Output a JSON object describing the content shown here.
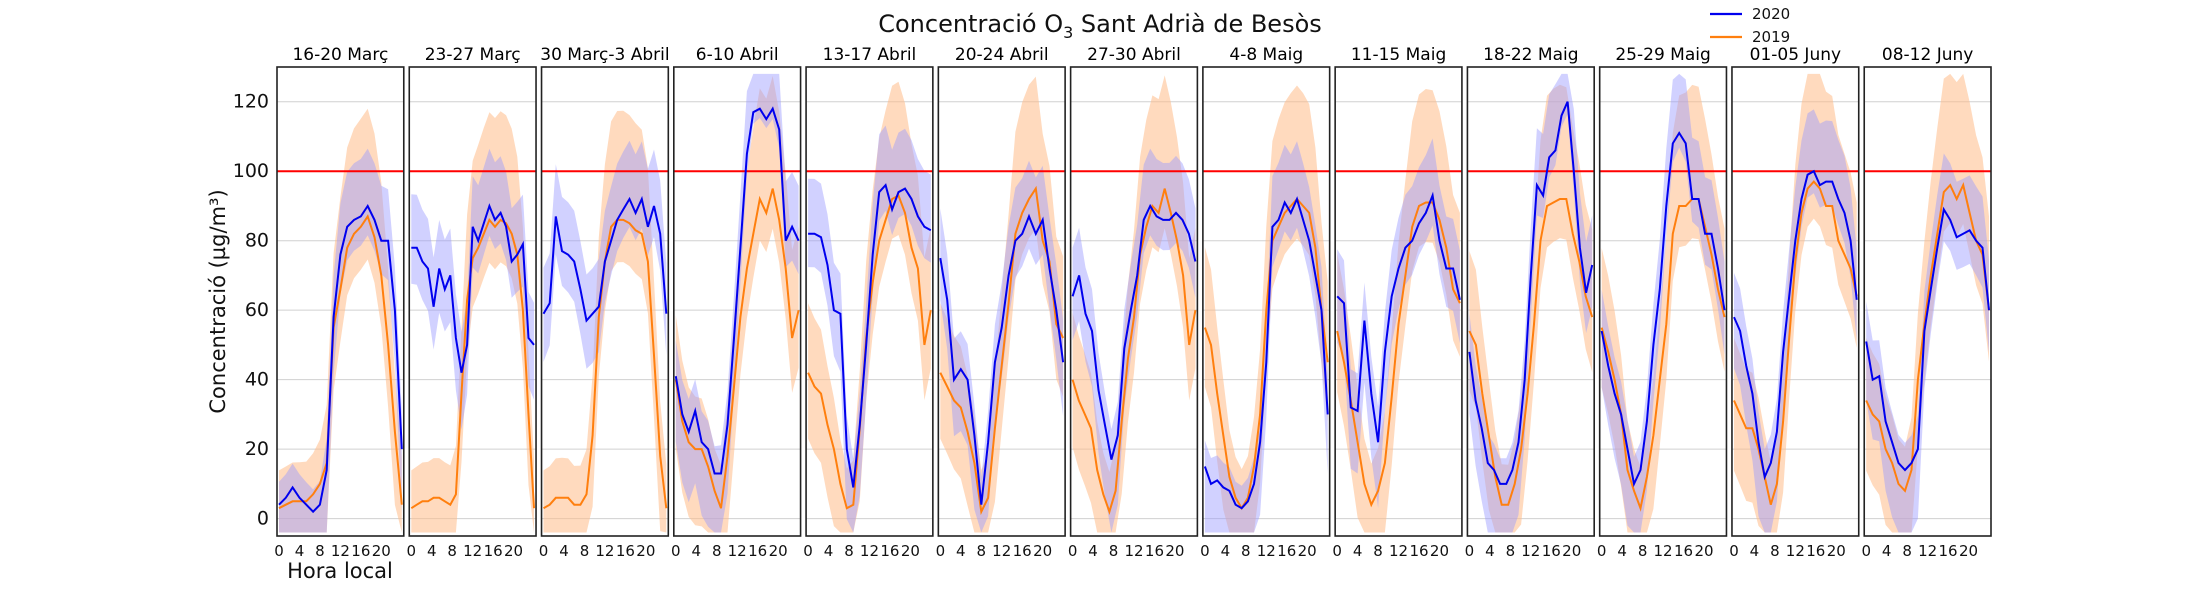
{
  "chart_data": {
    "type": "line",
    "title": "Concentració O",
    "title_subscript": "3",
    "title_suffix": " Sant Adrià de Besòs",
    "ylabel": "Concentració (µg/m³)",
    "xlabel": "Hora local",
    "ylim": [
      -5,
      130
    ],
    "yticks": [
      0,
      20,
      40,
      60,
      80,
      100,
      120
    ],
    "xlim": [
      0,
      24
    ],
    "xticks": [
      0,
      4,
      8,
      12,
      16,
      20
    ],
    "threshold": 100,
    "grid": true,
    "legend_position": "top-right",
    "colors": {
      "2020": "#0000ee",
      "2019": "#ff7f0e",
      "band2020": "#9999ff",
      "band2019": "#ffbb88",
      "threshold": "#ff0000"
    },
    "series_names": [
      "2020",
      "2019"
    ],
    "panels": [
      {
        "title": "16-20 Març",
        "s2020": [
          4,
          6,
          9,
          6,
          4,
          2,
          4,
          14,
          58,
          76,
          84,
          86,
          87,
          90,
          86,
          80,
          80,
          60,
          20
        ],
        "s2019": [
          3,
          4,
          5,
          5,
          5,
          7,
          10,
          16,
          55,
          66,
          78,
          82,
          84,
          87,
          81,
          70,
          50,
          25,
          4
        ]
      },
      {
        "title": "23-27 Març",
        "s2020": [
          78,
          78,
          74,
          72,
          61,
          72,
          66,
          70,
          52,
          42,
          50,
          84,
          80,
          85,
          90,
          86,
          88,
          84,
          74,
          76,
          79,
          52,
          50
        ],
        "s2019": [
          3,
          4,
          5,
          5,
          6,
          6,
          5,
          4,
          7,
          36,
          63,
          75,
          78,
          82,
          86,
          84,
          86,
          85,
          82,
          76,
          60,
          30,
          3
        ]
      },
      {
        "title": "30 Març-3 Abril",
        "s2020": [
          59,
          62,
          87,
          77,
          76,
          74,
          66,
          57,
          59,
          61,
          74,
          80,
          86,
          89,
          92,
          88,
          92,
          84,
          90,
          82,
          59
        ],
        "s2019": [
          3,
          4,
          6,
          6,
          6,
          4,
          4,
          7,
          24,
          58,
          74,
          84,
          86,
          86,
          85,
          83,
          82,
          74,
          47,
          18,
          3
        ]
      },
      {
        "title": "6-10 Abril",
        "s2020": [
          41,
          30,
          25,
          31,
          22,
          20,
          13,
          13,
          27,
          52,
          78,
          105,
          117,
          118,
          115,
          118,
          112,
          80,
          84,
          80
        ],
        "s2019": [
          40,
          28,
          22,
          20,
          20,
          15,
          8,
          3,
          18,
          38,
          58,
          72,
          82,
          92,
          88,
          95,
          86,
          72,
          52,
          60
        ]
      },
      {
        "title": "13-17 Abril",
        "s2020": [
          82,
          82,
          81,
          73,
          60,
          59,
          20,
          9,
          27,
          50,
          76,
          94,
          96,
          89,
          94,
          95,
          92,
          87,
          84,
          83
        ],
        "s2019": [
          42,
          38,
          36,
          27,
          20,
          10,
          3,
          4,
          26,
          52,
          68,
          80,
          86,
          92,
          93,
          88,
          78,
          72,
          50,
          60
        ]
      },
      {
        "title": "20-24 Abril",
        "s2020": [
          75,
          63,
          40,
          43,
          40,
          24,
          4,
          22,
          45,
          55,
          70,
          80,
          82,
          87,
          82,
          86,
          72,
          60,
          45
        ],
        "s2019": [
          42,
          38,
          34,
          32,
          25,
          16,
          2,
          6,
          26,
          44,
          62,
          82,
          88,
          92,
          95,
          80,
          74,
          56,
          52
        ]
      },
      {
        "title": "27-30 Abril",
        "s2020": [
          64,
          70,
          59,
          54,
          37,
          27,
          17,
          24,
          49,
          60,
          70,
          86,
          90,
          87,
          86,
          86,
          88,
          86,
          82,
          74
        ],
        "s2019": [
          40,
          34,
          30,
          26,
          14,
          7,
          2,
          8,
          28,
          46,
          58,
          76,
          84,
          90,
          88,
          95,
          88,
          80,
          70,
          50,
          60
        ]
      },
      {
        "title": "4-8 Maig",
        "s2020": [
          15,
          10,
          11,
          9,
          8,
          4,
          3,
          5,
          10,
          22,
          45,
          84,
          86,
          91,
          88,
          92,
          86,
          80,
          70,
          60,
          30
        ],
        "s2019": [
          55,
          50,
          36,
          24,
          12,
          6,
          3,
          6,
          15,
          30,
          60,
          80,
          84,
          88,
          90,
          92,
          90,
          88,
          78,
          60,
          45
        ]
      },
      {
        "title": "11-15 Maig",
        "s2020": [
          64,
          62,
          32,
          31,
          57,
          36,
          22,
          48,
          64,
          72,
          78,
          80,
          85,
          88,
          93,
          80,
          72,
          72,
          63
        ],
        "s2019": [
          54,
          45,
          34,
          22,
          10,
          4,
          8,
          16,
          35,
          56,
          70,
          84,
          90,
          91,
          91,
          86,
          78,
          66,
          62
        ]
      },
      {
        "title": "18-22 Maig",
        "s2020": [
          48,
          34,
          26,
          16,
          14,
          10,
          10,
          14,
          22,
          40,
          70,
          96,
          93,
          104,
          106,
          116,
          120,
          100,
          78,
          65,
          73
        ],
        "s2019": [
          54,
          50,
          36,
          24,
          12,
          4,
          4,
          10,
          20,
          36,
          56,
          80,
          90,
          91,
          92,
          92,
          82,
          74,
          64,
          58
        ]
      },
      {
        "title": "25-29 Maig",
        "s2020": [
          54,
          44,
          36,
          30,
          20,
          10,
          14,
          28,
          50,
          66,
          90,
          108,
          111,
          108,
          92,
          92,
          82,
          82,
          72,
          60
        ],
        "s2019": [
          55,
          48,
          40,
          30,
          14,
          8,
          3,
          12,
          24,
          40,
          56,
          82,
          90,
          90,
          92,
          92,
          84,
          76,
          66,
          58
        ]
      },
      {
        "title": "01-05 Juny",
        "s2020": [
          58,
          54,
          44,
          36,
          22,
          12,
          16,
          25,
          48,
          64,
          80,
          92,
          99,
          100,
          96,
          97,
          97,
          92,
          88,
          80,
          63
        ],
        "s2019": [
          34,
          30,
          26,
          26,
          20,
          12,
          4,
          10,
          28,
          52,
          74,
          88,
          95,
          97,
          95,
          90,
          90,
          80,
          76,
          72,
          64
        ]
      },
      {
        "title": "08-12 Juny",
        "s2020": [
          51,
          40,
          41,
          28,
          22,
          16,
          14,
          16,
          20,
          54,
          66,
          78,
          89,
          86,
          81,
          82,
          83,
          80,
          78,
          60
        ],
        "s2019": [
          34,
          30,
          28,
          20,
          16,
          10,
          8,
          14,
          40,
          56,
          70,
          82,
          94,
          96,
          92,
          96,
          88,
          80,
          76,
          60
        ]
      }
    ]
  }
}
